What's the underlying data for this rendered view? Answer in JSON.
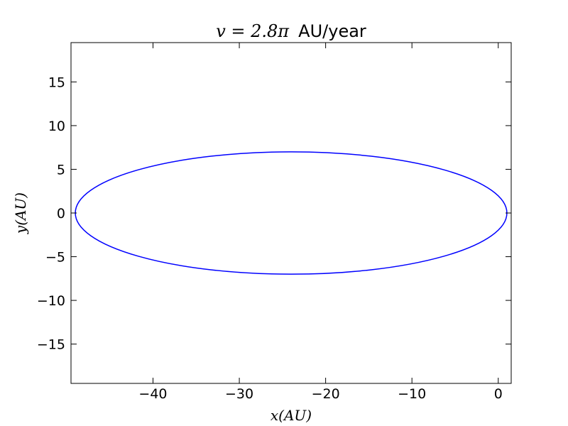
{
  "chart_data": {
    "type": "line",
    "title": {
      "math": "v = 2.8π",
      "units": "AU/year"
    },
    "xlabel": "x(AU)",
    "ylabel": "y(AU)",
    "xlim": [
      -49.5,
      1.5
    ],
    "ylim": [
      -19.5,
      19.5
    ],
    "xticks": [
      -40,
      -30,
      -20,
      -10,
      0
    ],
    "yticks": [
      -15,
      -10,
      -5,
      0,
      5,
      10,
      15
    ],
    "xtick_labels": [
      "−40",
      "−30",
      "−20",
      "−10",
      "0"
    ],
    "ytick_labels": [
      "−15",
      "−10",
      "−5",
      "0",
      "5",
      "10",
      "15"
    ],
    "grid": false,
    "series": [
      {
        "shape": "ellipse",
        "color": "#0000ff",
        "center": [
          -24.0,
          0.0
        ],
        "semi_major_x": 25.0,
        "semi_minor_y": 7.0,
        "x_extent": [
          -49.0,
          1.0
        ],
        "y_extent": [
          -7.0,
          7.0
        ]
      }
    ]
  }
}
